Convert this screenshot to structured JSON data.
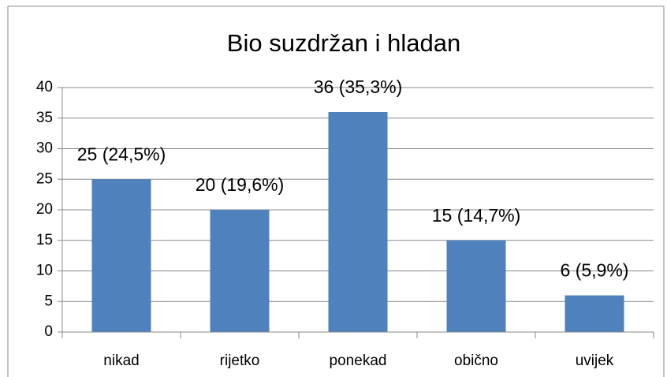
{
  "chart_data": {
    "type": "bar",
    "title": "Bio suzdržan i hladan",
    "categories": [
      "nikad",
      "rijetko",
      "ponekad",
      "obično",
      "uvijek"
    ],
    "values": [
      25,
      20,
      36,
      15,
      6
    ],
    "value_labels": [
      "25 (24,5%)",
      "20 (19,6%)",
      "36 (35,3%)",
      "15 (14,7%)",
      "6 (5,9%)"
    ],
    "color": "#4f81bd",
    "ylim": [
      0,
      40
    ],
    "yticks": [
      0,
      5,
      10,
      15,
      20,
      25,
      30,
      35,
      40
    ],
    "grid": true
  }
}
